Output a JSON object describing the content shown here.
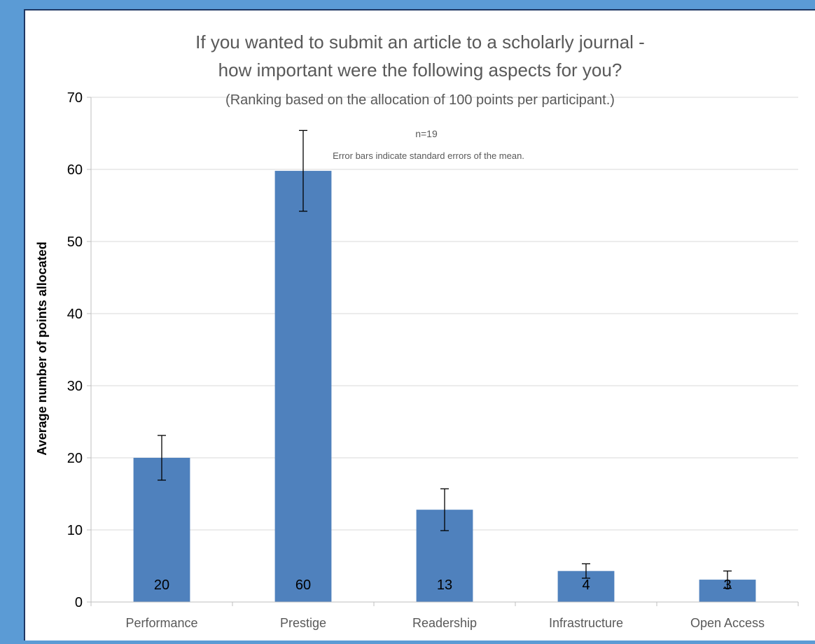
{
  "chart_data": {
    "type": "bar",
    "title_line1": "If you wanted to submit an article to a scholarly journal -",
    "title_line2": "how important were the following aspects for you?",
    "subtitle": "(Ranking based on the allocation of 100 points per participant.)",
    "annotation_n": "n=19",
    "annotation_error": "Error bars indicate standard errors of the mean.",
    "xlabel": "",
    "ylabel": "Average number of points allocated",
    "ylim": [
      0,
      70
    ],
    "yticks": [
      0,
      10,
      20,
      30,
      40,
      50,
      60,
      70
    ],
    "grid": true,
    "categories": [
      "Performance",
      "Prestige",
      "Readership",
      "Infrastructure",
      "Open Access"
    ],
    "values": [
      20,
      59.8,
      12.8,
      4.3,
      3.1
    ],
    "data_labels": [
      "20",
      "60",
      "13",
      "4",
      "3"
    ],
    "error": [
      3.1,
      5.6,
      2.9,
      1.0,
      1.2
    ],
    "colors": {
      "bar": "#4f81bd",
      "grid": "#d9d9d9",
      "axis": "#bfbfbf",
      "text": "#595959",
      "title": "#595959",
      "background": "#5b9bd5"
    }
  }
}
